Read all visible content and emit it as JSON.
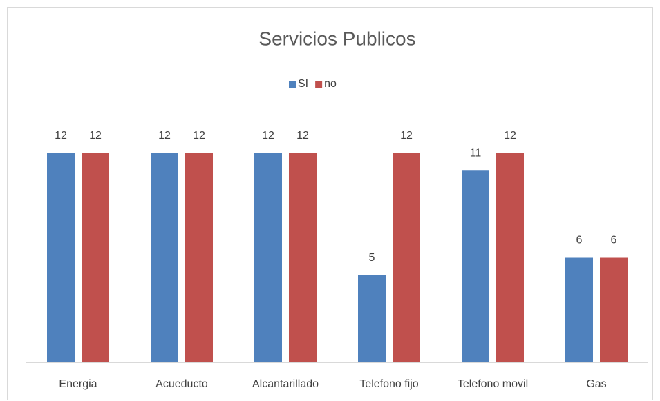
{
  "chart_data": {
    "type": "bar",
    "title": "Servicios Publicos",
    "categories": [
      "Energia",
      "Acueducto",
      "Alcantarillado",
      "Telefono fijo",
      "Telefono movil",
      "Gas"
    ],
    "series": [
      {
        "name": "SI",
        "color": "#4f81bd",
        "values": [
          12,
          12,
          12,
          5,
          11,
          6
        ]
      },
      {
        "name": "no",
        "color": "#c0504d",
        "values": [
          12,
          12,
          12,
          12,
          12,
          6
        ]
      }
    ],
    "ylim": [
      0,
      14
    ],
    "legend": "top",
    "grid": false
  }
}
